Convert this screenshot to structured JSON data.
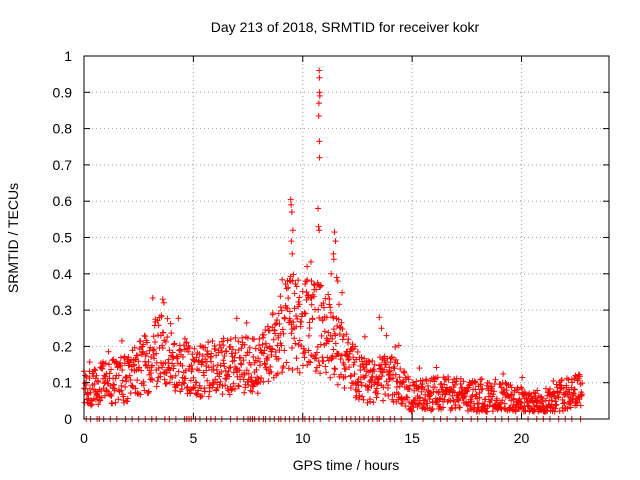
{
  "chart_data": {
    "type": "scatter",
    "title": "Day 213 of 2018, SRMTID for receiver kokr",
    "xlabel": "GPS time / hours",
    "ylabel": "SRMTID / TECUs",
    "xlim": [
      0,
      24
    ],
    "ylim": [
      0,
      1
    ],
    "grid": true,
    "x_ticks": [
      0,
      5,
      10,
      15,
      20
    ],
    "x_tick_labels": [
      "0",
      "5",
      "10",
      "15",
      "20"
    ],
    "y_ticks": [
      0,
      0.1,
      0.2,
      0.3,
      0.4,
      0.5,
      0.6,
      0.7,
      0.8,
      0.9,
      1
    ],
    "y_tick_labels": [
      "0",
      "0.1",
      "0.2",
      "0.3",
      "0.4",
      "0.5",
      "0.6",
      "0.7",
      "0.8",
      "0.9",
      "1"
    ],
    "marker": "+",
    "color": "#ff0000",
    "series": [
      {
        "name": "SRMTID",
        "profile": {
          "x": [
            0,
            1,
            2,
            3,
            3.5,
            4,
            4.5,
            5,
            6,
            7,
            8,
            8.5,
            9,
            9.5,
            10,
            10.5,
            11,
            11.5,
            12,
            12.5,
            13,
            13.5,
            14,
            14.5,
            15,
            16,
            17,
            18,
            19,
            20,
            20.5,
            21,
            22,
            22.8
          ],
          "y": [
            0.09,
            0.1,
            0.11,
            0.16,
            0.2,
            0.17,
            0.15,
            0.13,
            0.14,
            0.15,
            0.15,
            0.18,
            0.23,
            0.27,
            0.25,
            0.26,
            0.24,
            0.2,
            0.16,
            0.12,
            0.1,
            0.11,
            0.12,
            0.09,
            0.06,
            0.07,
            0.07,
            0.06,
            0.06,
            0.05,
            0.04,
            0.05,
            0.07,
            0.09
          ]
        },
        "outliers": [
          {
            "x": 3.6,
            "y": 0.33
          },
          {
            "x": 3.65,
            "y": 0.32
          },
          {
            "x": 9.45,
            "y": 0.605
          },
          {
            "x": 9.47,
            "y": 0.59
          },
          {
            "x": 9.5,
            "y": 0.57
          },
          {
            "x": 9.55,
            "y": 0.52
          },
          {
            "x": 9.48,
            "y": 0.49
          },
          {
            "x": 9.52,
            "y": 0.455
          },
          {
            "x": 10.75,
            "y": 0.96
          },
          {
            "x": 10.76,
            "y": 0.94
          },
          {
            "x": 10.77,
            "y": 0.9
          },
          {
            "x": 10.78,
            "y": 0.89
          },
          {
            "x": 10.74,
            "y": 0.87
          },
          {
            "x": 10.73,
            "y": 0.835
          },
          {
            "x": 10.76,
            "y": 0.765
          },
          {
            "x": 10.77,
            "y": 0.72
          },
          {
            "x": 10.7,
            "y": 0.58
          },
          {
            "x": 10.72,
            "y": 0.53
          },
          {
            "x": 10.75,
            "y": 0.52
          },
          {
            "x": 11.45,
            "y": 0.515
          },
          {
            "x": 11.5,
            "y": 0.49
          },
          {
            "x": 11.4,
            "y": 0.455
          },
          {
            "x": 11.42,
            "y": 0.44
          },
          {
            "x": 11.3,
            "y": 0.4
          },
          {
            "x": 11.55,
            "y": 0.39
          },
          {
            "x": 11.6,
            "y": 0.38
          },
          {
            "x": 10.2,
            "y": 0.42
          },
          {
            "x": 10.4,
            "y": 0.38
          },
          {
            "x": 13.5,
            "y": 0.28
          },
          {
            "x": 13.6,
            "y": 0.25
          }
        ],
        "zero_times": [
          0.1,
          0.3,
          0.6,
          0.7,
          0.9,
          1.2,
          1.5,
          1.9,
          2.2,
          2.5,
          2.8,
          3.1,
          3.3,
          3.7,
          3.9,
          4.2,
          4.6,
          4.7,
          4.8,
          4.9,
          5.1,
          5.3,
          5.6,
          5.8,
          6.0,
          6.3,
          6.7,
          7.0,
          7.3,
          7.5,
          7.6,
          7.7,
          7.8,
          8.0,
          8.2,
          8.3,
          8.5,
          8.7,
          8.9,
          9.0,
          9.2,
          9.4,
          9.6,
          9.8,
          10.0,
          10.1,
          10.3,
          10.5,
          10.8,
          11.2,
          11.5,
          11.8,
          12.0,
          12.2,
          12.4,
          12.6,
          12.8,
          13.0,
          13.2,
          13.4,
          13.5,
          13.7,
          14.0,
          14.2,
          14.5,
          15.0,
          15.5,
          16.0,
          16.3,
          16.6,
          17.0,
          17.3,
          17.7,
          18.0,
          18.4,
          18.8,
          19.1,
          19.4,
          19.8,
          20.3,
          20.7,
          21.0,
          21.3,
          21.7,
          22.0,
          22.3,
          22.7
        ]
      }
    ]
  }
}
